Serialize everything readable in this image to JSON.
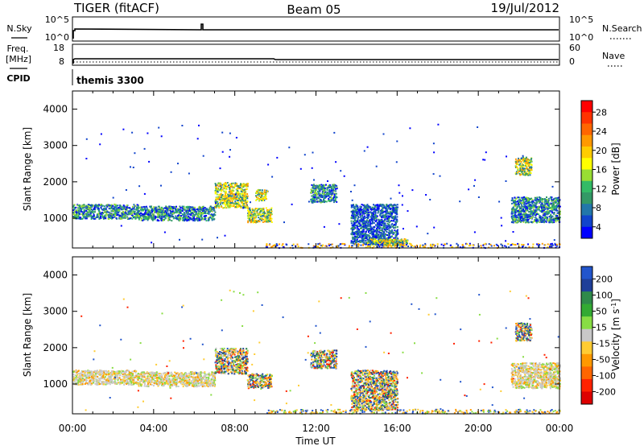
{
  "header": {
    "radar": "TIGER (fitACF)",
    "beam": "Beam 05",
    "date": "19/Jul/2012"
  },
  "sky_panel": {
    "left_label": "N.Sky",
    "left_ticks": [
      "10^5",
      "10^0"
    ],
    "right_ticks": [
      "10^5",
      "10^0"
    ],
    "right_label": "N.Search"
  },
  "freq_panel": {
    "left_label_1": "Freq.",
    "left_label_2": "[MHz]",
    "left_ticks": [
      "18",
      "8"
    ],
    "right_ticks": [
      "60",
      "0"
    ],
    "right_label": "Nave"
  },
  "cpid": {
    "label": "CPID",
    "value": "themis 3300"
  },
  "chart_data": [
    {
      "type": "heatmap",
      "name": "power",
      "ylabel": "Slant Range [km]",
      "yticks": [
        "4000",
        "3000",
        "2000",
        "1000"
      ],
      "ylim": [
        180,
        4500
      ],
      "xlim": [
        0,
        24
      ],
      "colorbar": {
        "label": "Power [dB]",
        "ticks": [
          "28",
          "24",
          "20",
          "16",
          "12",
          "8",
          "4"
        ],
        "colors": [
          "#ff0000",
          "#ff3300",
          "#ff6600",
          "#ff9900",
          "#ffcc00",
          "#ffff00",
          "#99dd33",
          "#33bb66",
          "#339966",
          "#2277aa",
          "#1144cc",
          "#0000ff"
        ]
      },
      "scatter_bands": [
        {
          "t_start": 0.0,
          "t_end": 3.2,
          "range_low": 1000,
          "range_high": 1400,
          "level": "medium"
        },
        {
          "t_start": 3.2,
          "t_end": 7.0,
          "range_low": 950,
          "range_high": 1350,
          "level": "medium"
        },
        {
          "t_start": 7.0,
          "t_end": 8.6,
          "range_low": 1300,
          "range_high": 2000,
          "level": "high"
        },
        {
          "t_start": 8.6,
          "t_end": 9.8,
          "range_low": 900,
          "range_high": 1300,
          "level": "high"
        },
        {
          "t_start": 9.0,
          "t_end": 9.6,
          "range_low": 1500,
          "range_high": 1800,
          "level": "high"
        },
        {
          "t_start": 11.7,
          "t_end": 13.0,
          "range_low": 1450,
          "range_high": 1950,
          "level": "medium"
        },
        {
          "t_start": 13.7,
          "t_end": 16.0,
          "range_low": 300,
          "range_high": 1400,
          "level": "low"
        },
        {
          "t_start": 14.5,
          "t_end": 16.5,
          "range_low": 250,
          "range_high": 450,
          "level": "high"
        },
        {
          "t_start": 21.6,
          "t_end": 24.0,
          "range_low": 900,
          "range_high": 1600,
          "level": "medium"
        },
        {
          "t_start": 21.8,
          "t_end": 22.6,
          "range_low": 2200,
          "range_high": 2700,
          "level": "high"
        }
      ]
    },
    {
      "type": "heatmap",
      "name": "velocity",
      "ylabel": "Slant Range [km]",
      "yticks": [
        "4000",
        "3000",
        "2000",
        "1000"
      ],
      "ylim": [
        180,
        4500
      ],
      "xlim": [
        0,
        24
      ],
      "xticks": [
        "00:00",
        "04:00",
        "08:00",
        "12:00",
        "16:00",
        "20:00",
        "00:00"
      ],
      "xlabel": "Time UT",
      "colorbar": {
        "label_1": "Velocity [m s",
        "label_sup": "-1",
        "label_2": "]",
        "ticks": [
          "200",
          "100",
          "50",
          "15",
          "-15",
          "-50",
          "-100",
          "-200"
        ],
        "colors": [
          "#2255cc",
          "#1f3f99",
          "#2f8a4a",
          "#33aa33",
          "#88dd44",
          "#c8c8c8",
          "#ffcc33",
          "#ff9900",
          "#ff6600",
          "#ff2200",
          "#dd0000"
        ]
      },
      "scatter_bands": [
        {
          "t_start": 0.0,
          "t_end": 3.2,
          "range_low": 1000,
          "range_high": 1400,
          "level": "ground"
        },
        {
          "t_start": 3.2,
          "t_end": 7.0,
          "range_low": 950,
          "range_high": 1350,
          "level": "ground"
        },
        {
          "t_start": 7.0,
          "t_end": 8.6,
          "range_low": 1300,
          "range_high": 2000,
          "level": "mixed"
        },
        {
          "t_start": 8.6,
          "t_end": 9.8,
          "range_low": 900,
          "range_high": 1300,
          "level": "mixed"
        },
        {
          "t_start": 11.7,
          "t_end": 13.0,
          "range_low": 1450,
          "range_high": 1950,
          "level": "mixed"
        },
        {
          "t_start": 13.7,
          "t_end": 16.0,
          "range_low": 300,
          "range_high": 1400,
          "level": "mixed"
        },
        {
          "t_start": 21.6,
          "t_end": 24.0,
          "range_low": 900,
          "range_high": 1600,
          "level": "ground"
        },
        {
          "t_start": 21.8,
          "t_end": 22.6,
          "range_low": 2200,
          "range_high": 2700,
          "level": "mixed"
        }
      ]
    }
  ]
}
